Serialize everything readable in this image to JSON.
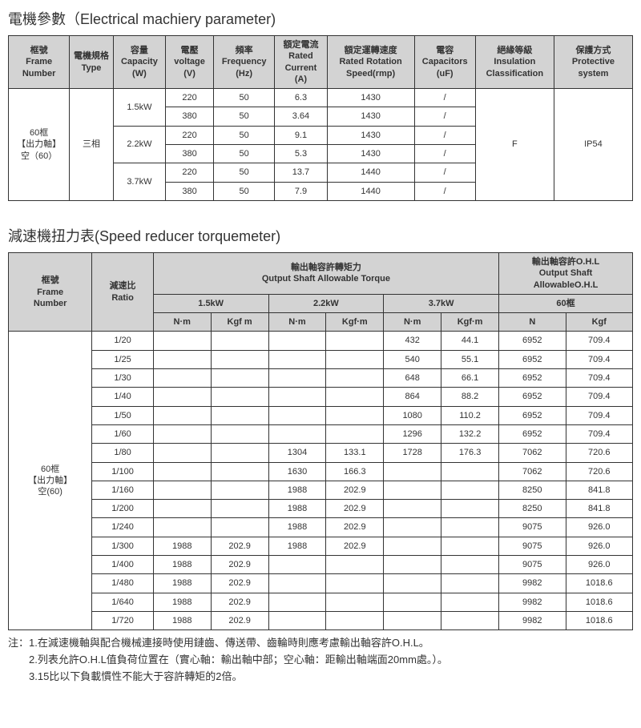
{
  "table1": {
    "title": "電機參數（Electrical machiery parameter)",
    "headers": {
      "frame": "框號\nFrame Number",
      "type": "電機規格\nType",
      "capacity": "容量\nCapacity\n(W)",
      "voltage": "電壓\nvoltage\n(V)",
      "frequency": "頻率\nFrequency\n(Hz)",
      "ratedCurrent": "額定電流\nRated Current\n(A)",
      "ratedSpeed": "額定運轉速度\nRated Rotation Speed(rmp)",
      "capacitors": "電容\nCapacitors\n(uF)",
      "insulation": "絕緣等級\nInsulation Classification",
      "protective": "保護方式\nProtective system"
    },
    "frameLabel": "60框\n【出力軸】\n空（60）",
    "typeLabel": "三相",
    "capacities": [
      "1.5kW",
      "2.2kW",
      "3.7kW"
    ],
    "rows": [
      {
        "v": "220",
        "f": "50",
        "rc": "6.3",
        "spd": "1430",
        "cap": "/"
      },
      {
        "v": "380",
        "f": "50",
        "rc": "3.64",
        "spd": "1430",
        "cap": "/"
      },
      {
        "v": "220",
        "f": "50",
        "rc": "9.1",
        "spd": "1430",
        "cap": "/"
      },
      {
        "v": "380",
        "f": "50",
        "rc": "5.3",
        "spd": "1430",
        "cap": "/"
      },
      {
        "v": "220",
        "f": "50",
        "rc": "13.7",
        "spd": "1440",
        "cap": "/"
      },
      {
        "v": "380",
        "f": "50",
        "rc": "7.9",
        "spd": "1440",
        "cap": "/"
      }
    ],
    "insulationVal": "F",
    "protectiveVal": "IP54"
  },
  "table2": {
    "title": "減速機扭力表(Speed reducer torquemeter)",
    "headers": {
      "frame": "框號\nFrame\nNumber",
      "ratio": "減速比\nRatio",
      "torqueHeader": "輸出軸容許轉矩力\nQutput Shaft Allowable Torque",
      "ohlHeader": "輸出軸容許O.H.L\nOutput Shaft\nAllowableO.H.L",
      "kw15": "1.5kW",
      "kw22": "2.2kW",
      "kw37": "3.7kW",
      "frame60": "60框",
      "nm": "N·m",
      "kgfm": "Kgf m",
      "kgfm2": "Kgf·m",
      "n": "N",
      "kgf": "Kgf"
    },
    "frameLabel": "60框\n【出力軸】\n空(60)",
    "rows": [
      {
        "r": "1/20",
        "nm15": "",
        "kgf15": "",
        "nm22": "",
        "kgf22": "",
        "nm37": "432",
        "kgf37": "44.1",
        "n": "6952",
        "kgf": "709.4"
      },
      {
        "r": "1/25",
        "nm15": "",
        "kgf15": "",
        "nm22": "",
        "kgf22": "",
        "nm37": "540",
        "kgf37": "55.1",
        "n": "6952",
        "kgf": "709.4"
      },
      {
        "r": "1/30",
        "nm15": "",
        "kgf15": "",
        "nm22": "",
        "kgf22": "",
        "nm37": "648",
        "kgf37": "66.1",
        "n": "6952",
        "kgf": "709.4"
      },
      {
        "r": "1/40",
        "nm15": "",
        "kgf15": "",
        "nm22": "",
        "kgf22": "",
        "nm37": "864",
        "kgf37": "88.2",
        "n": "6952",
        "kgf": "709.4"
      },
      {
        "r": "1/50",
        "nm15": "",
        "kgf15": "",
        "nm22": "",
        "kgf22": "",
        "nm37": "1080",
        "kgf37": "110.2",
        "n": "6952",
        "kgf": "709.4"
      },
      {
        "r": "1/60",
        "nm15": "",
        "kgf15": "",
        "nm22": "",
        "kgf22": "",
        "nm37": "1296",
        "kgf37": "132.2",
        "n": "6952",
        "kgf": "709.4"
      },
      {
        "r": "1/80",
        "nm15": "",
        "kgf15": "",
        "nm22": "1304",
        "kgf22": "133.1",
        "nm37": "1728",
        "kgf37": "176.3",
        "n": "7062",
        "kgf": "720.6"
      },
      {
        "r": "1/100",
        "nm15": "",
        "kgf15": "",
        "nm22": "1630",
        "kgf22": "166.3",
        "nm37": "",
        "kgf37": "",
        "n": "7062",
        "kgf": "720.6"
      },
      {
        "r": "1/160",
        "nm15": "",
        "kgf15": "",
        "nm22": "1988",
        "kgf22": "202.9",
        "nm37": "",
        "kgf37": "",
        "n": "8250",
        "kgf": "841.8"
      },
      {
        "r": "1/200",
        "nm15": "",
        "kgf15": "",
        "nm22": "1988",
        "kgf22": "202.9",
        "nm37": "",
        "kgf37": "",
        "n": "8250",
        "kgf": "841.8"
      },
      {
        "r": "1/240",
        "nm15": "",
        "kgf15": "",
        "nm22": "1988",
        "kgf22": "202.9",
        "nm37": "",
        "kgf37": "",
        "n": "9075",
        "kgf": "926.0"
      },
      {
        "r": "1/300",
        "nm15": "1988",
        "kgf15": "202.9",
        "nm22": "1988",
        "kgf22": "202.9",
        "nm37": "",
        "kgf37": "",
        "n": "9075",
        "kgf": "926.0"
      },
      {
        "r": "1/400",
        "nm15": "1988",
        "kgf15": "202.9",
        "nm22": "",
        "kgf22": "",
        "nm37": "",
        "kgf37": "",
        "n": "9075",
        "kgf": "926.0"
      },
      {
        "r": "1/480",
        "nm15": "1988",
        "kgf15": "202.9",
        "nm22": "",
        "kgf22": "",
        "nm37": "",
        "kgf37": "",
        "n": "9982",
        "kgf": "1018.6"
      },
      {
        "r": "1/640",
        "nm15": "1988",
        "kgf15": "202.9",
        "nm22": "",
        "kgf22": "",
        "nm37": "",
        "kgf37": "",
        "n": "9982",
        "kgf": "1018.6"
      },
      {
        "r": "1/720",
        "nm15": "1988",
        "kgf15": "202.9",
        "nm22": "",
        "kgf22": "",
        "nm37": "",
        "kgf37": "",
        "n": "9982",
        "kgf": "1018.6"
      }
    ]
  },
  "notes": {
    "n1": "注：1.在減速機軸與配合機械連接時使用鏈齒、傳送帶、齒輪時則應考慮輸出軸容許O.H.L。",
    "n2": "　　2.列表允許O.H.L值負荷位置在（實心軸：輸出軸中部；空心軸：距輸出軸端面20mm處。）。",
    "n3": "　　3.15比以下負載慣性不能大于容許轉矩的2倍。"
  }
}
